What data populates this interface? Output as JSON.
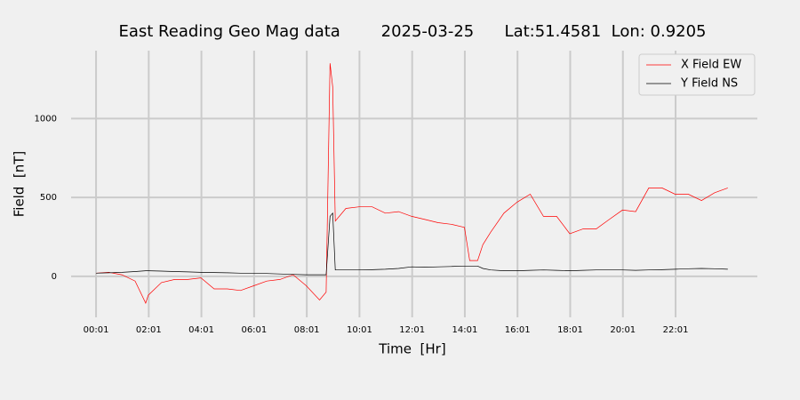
{
  "chart_data": {
    "type": "line",
    "title": "East Reading Geo Mag data        2025-03-25      Lat:51.4581  Lon: 0.9205",
    "x_label": "Time  [Hr]",
    "y_label": "Field  [nT]",
    "x": [
      0.02,
      0.5,
      1,
      1.5,
      1.9,
      2,
      2.5,
      3,
      3.5,
      4,
      4.5,
      5,
      5.5,
      6,
      6.5,
      7,
      7.5,
      8,
      8.5,
      8.75,
      8.9,
      9.0,
      9.1,
      9.5,
      10,
      10.5,
      11,
      11.5,
      12,
      12.5,
      13,
      13.5,
      14,
      14.2,
      14.5,
      14.7,
      15,
      15.5,
      16,
      16.5,
      17,
      17.5,
      18,
      18.5,
      19,
      19.5,
      20,
      20.5,
      21,
      21.5,
      22,
      22.5,
      23,
      23.5,
      24
    ],
    "series": [
      {
        "name": "X Field EW",
        "color": "#ff0000",
        "values": [
          20,
          25,
          10,
          -30,
          -170,
          -120,
          -40,
          -20,
          -20,
          -10,
          -80,
          -80,
          -90,
          -60,
          -30,
          -20,
          10,
          -60,
          -150,
          -100,
          1350,
          1200,
          350,
          430,
          440,
          440,
          400,
          410,
          380,
          360,
          340,
          330,
          310,
          100,
          100,
          200,
          280,
          400,
          470,
          520,
          380,
          380,
          270,
          300,
          300,
          360,
          420,
          410,
          560,
          560,
          520,
          520,
          480,
          530,
          560
        ]
      },
      {
        "name": "Y Field NS",
        "color": "#000000",
        "values": [
          20,
          22,
          25,
          30,
          35,
          35,
          33,
          30,
          28,
          25,
          24,
          22,
          20,
          20,
          18,
          15,
          12,
          10,
          10,
          10,
          380,
          400,
          40,
          40,
          40,
          42,
          45,
          50,
          60,
          58,
          60,
          62,
          65,
          65,
          65,
          50,
          40,
          35,
          35,
          38,
          40,
          38,
          35,
          38,
          40,
          40,
          40,
          38,
          40,
          42,
          45,
          48,
          50,
          48,
          45
        ]
      }
    ],
    "xlim": [
      -0.93,
      25.12
    ],
    "ylim": [
      -260,
      1430
    ],
    "xticks": [
      {
        "value": 0.0167,
        "label": "00:01"
      },
      {
        "value": 2.0167,
        "label": "02:01"
      },
      {
        "value": 4.0167,
        "label": "04:01"
      },
      {
        "value": 6.0167,
        "label": "06:01"
      },
      {
        "value": 8.0167,
        "label": "08:01"
      },
      {
        "value": 10.0167,
        "label": "10:01"
      },
      {
        "value": 12.0167,
        "label": "12:01"
      },
      {
        "value": 14.0167,
        "label": "14:01"
      },
      {
        "value": 16.0167,
        "label": "16:01"
      },
      {
        "value": 18.0167,
        "label": "18:01"
      },
      {
        "value": 20.0167,
        "label": "20:01"
      },
      {
        "value": 22.0167,
        "label": "22:01"
      }
    ],
    "yticks": [
      0,
      500,
      1000
    ],
    "grid": true,
    "legend": "upper right"
  }
}
